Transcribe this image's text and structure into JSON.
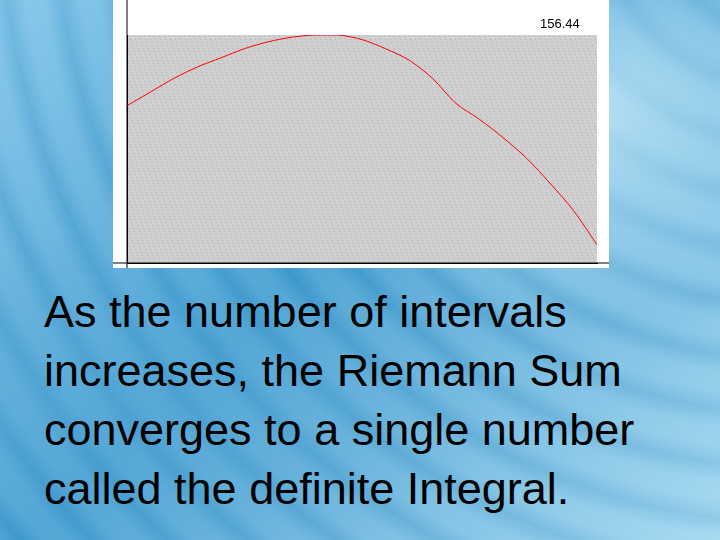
{
  "chart_data": {
    "type": "line",
    "x": [
      0,
      0.5,
      1,
      1.5,
      2,
      2.5,
      3,
      3.5,
      4,
      4.5,
      5,
      5.5,
      6,
      6.5,
      7,
      7.5,
      8,
      8.5,
      9,
      9.5,
      10
    ],
    "values": [
      6.9,
      7.5,
      8.1,
      8.6,
      9.0,
      9.4,
      9.7,
      9.9,
      10.0,
      10.0,
      9.8,
      9.4,
      8.9,
      8.1,
      7.0,
      6.3,
      5.5,
      4.6,
      3.5,
      2.3,
      0.8
    ],
    "color": "#ff0000",
    "line_style": "solid",
    "xlim": [
      0,
      10
    ],
    "ylim": [
      0,
      10
    ],
    "grid": false,
    "tick_labels": false,
    "annotation": "156.44"
  },
  "caption": [
    "As the number of intervals",
    "increases, the Riemann Sum",
    "converges to a single number",
    "called the definite Integral."
  ]
}
